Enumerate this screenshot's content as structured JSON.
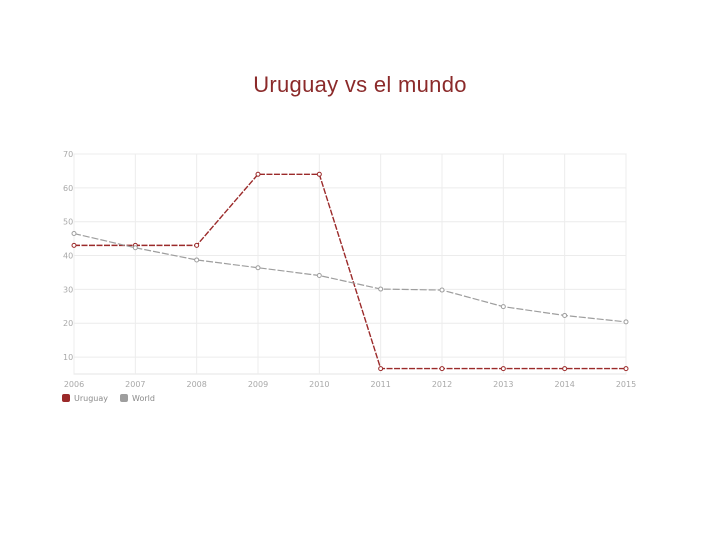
{
  "title": "Uruguay vs el mundo",
  "chart_data": {
    "type": "line",
    "title": "Uruguay vs el mundo",
    "x": [
      "2006",
      "2007",
      "2008",
      "2009",
      "2010",
      "2011",
      "2012",
      "2013",
      "2014",
      "2015"
    ],
    "y_ticks": [
      "10",
      "20",
      "30",
      "40",
      "50",
      "60",
      "70"
    ],
    "ylim": [
      5,
      70
    ],
    "grid": true,
    "legend_position": "bottom-left",
    "series": [
      {
        "name": "Uruguay",
        "color": "#9b2a2a",
        "values": [
          43,
          43,
          43,
          64,
          64,
          6.6,
          6.6,
          6.6,
          6.6,
          6.6
        ]
      },
      {
        "name": "World",
        "color": "#9e9e9e",
        "values": [
          46.5,
          42.3,
          38.7,
          36.4,
          34.1,
          30.1,
          29.8,
          24.9,
          22.3,
          20.4
        ]
      }
    ]
  }
}
